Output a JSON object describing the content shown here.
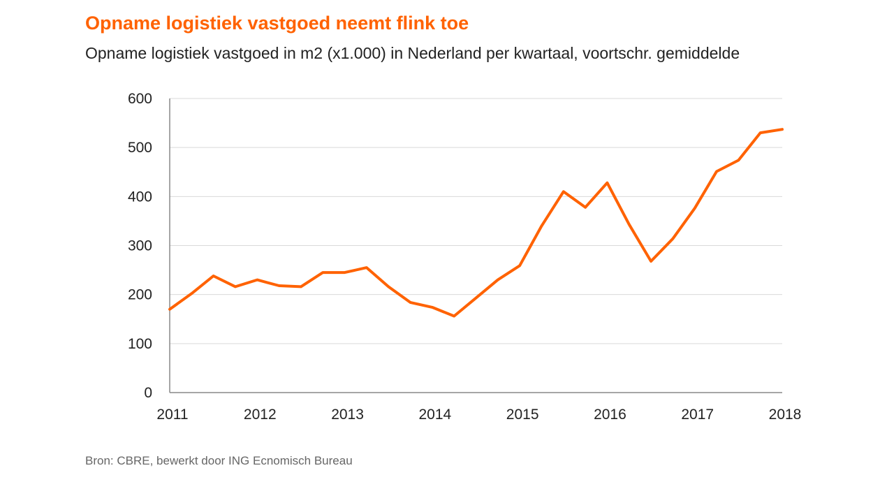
{
  "chart_data": {
    "type": "line",
    "title": "Opname logistiek vastgoed neemt flink toe",
    "subtitle": "Opname logistiek vastgoed in m2 (x1.000) in Nederland per kwartaal, voortschr. gemiddelde",
    "xlabel": "",
    "ylabel": "",
    "ylim": [
      0,
      600
    ],
    "yticks": [
      0,
      100,
      200,
      300,
      400,
      500,
      600
    ],
    "xlim": [
      2011,
      2018
    ],
    "xticks": [
      "2011",
      "2012",
      "2013",
      "2014",
      "2015",
      "2016",
      "2017",
      "2018"
    ],
    "grid": "horizontal",
    "colors": {
      "line": "#ff6200",
      "grid": "#d9d9d9",
      "axis": "#888888"
    },
    "series": [
      {
        "x": [
          2011.0,
          2011.25,
          2011.5,
          2011.75,
          2012.0,
          2012.25,
          2012.5,
          2012.75,
          2013.0,
          2013.25,
          2013.5,
          2013.75,
          2014.0,
          2014.25,
          2014.5,
          2014.75,
          2015.0,
          2015.25,
          2015.5,
          2015.75,
          2016.0,
          2016.25,
          2016.5,
          2016.75,
          2017.0,
          2017.25,
          2017.5,
          2017.75,
          2018.0
        ],
        "values": [
          170,
          202,
          238,
          216,
          230,
          218,
          216,
          245,
          245,
          255,
          216,
          184,
          174,
          156,
          193,
          230,
          259,
          340,
          410,
          378,
          428,
          343,
          268,
          314,
          376,
          451,
          474,
          530,
          537
        ]
      }
    ]
  },
  "footer": {
    "source": "Bron: CBRE, bewerkt door ING Ecnomisch Bureau"
  }
}
